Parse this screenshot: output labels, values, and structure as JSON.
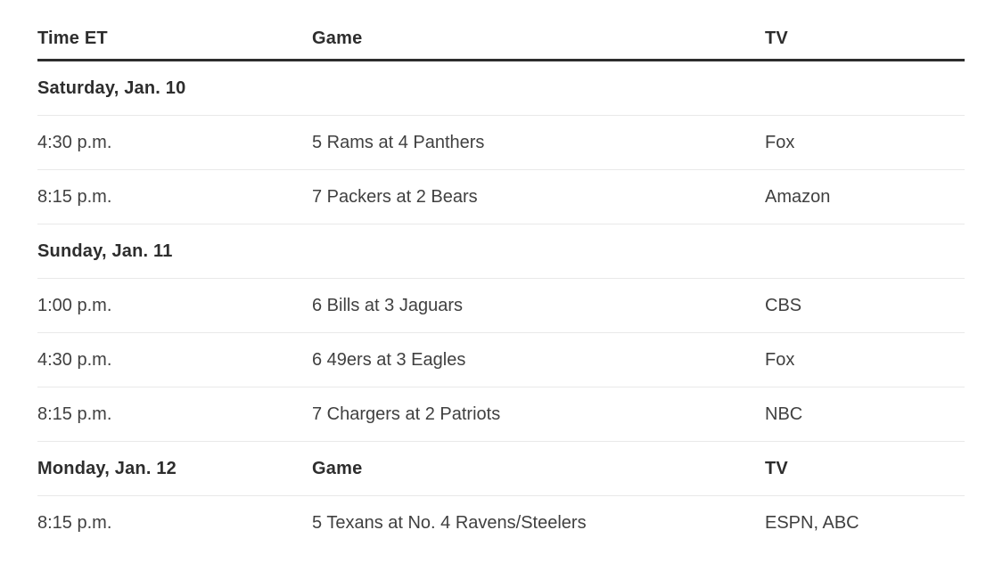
{
  "colors": {
    "background": "#ffffff",
    "heading_text": "#2d2d2d",
    "body_text": "#404040",
    "heavy_rule": "#2d2d2d",
    "light_rule": "#e9e9e9"
  },
  "chart_data": {
    "type": "table",
    "title": "",
    "columns": [
      "Time ET",
      "Game",
      "TV"
    ],
    "rows": [
      {
        "kind": "section",
        "time": "Saturday, Jan. 10",
        "game": "",
        "tv": ""
      },
      {
        "kind": "game",
        "time": "4:30 p.m.",
        "game": "5 Rams at 4 Panthers",
        "tv": "Fox"
      },
      {
        "kind": "game",
        "time": "8:15 p.m.",
        "game": "7 Packers at 2 Bears",
        "tv": "Amazon"
      },
      {
        "kind": "section",
        "time": "Sunday, Jan. 11",
        "game": "",
        "tv": ""
      },
      {
        "kind": "game",
        "time": "1:00 p.m.",
        "game": "6 Bills at 3 Jaguars",
        "tv": "CBS"
      },
      {
        "kind": "game",
        "time": "4:30 p.m.",
        "game": "6 49ers at 3 Eagles",
        "tv": "Fox"
      },
      {
        "kind": "game",
        "time": "8:15 p.m.",
        "game": "7 Chargers at 2 Patriots",
        "tv": "NBC"
      },
      {
        "kind": "section",
        "time": "Monday, Jan. 12",
        "game": "Game",
        "tv": "TV"
      },
      {
        "kind": "game",
        "time": "8:15 p.m.",
        "game": "5 Texans at No. 4 Ravens/Steelers",
        "tv": "ESPN, ABC"
      }
    ]
  }
}
